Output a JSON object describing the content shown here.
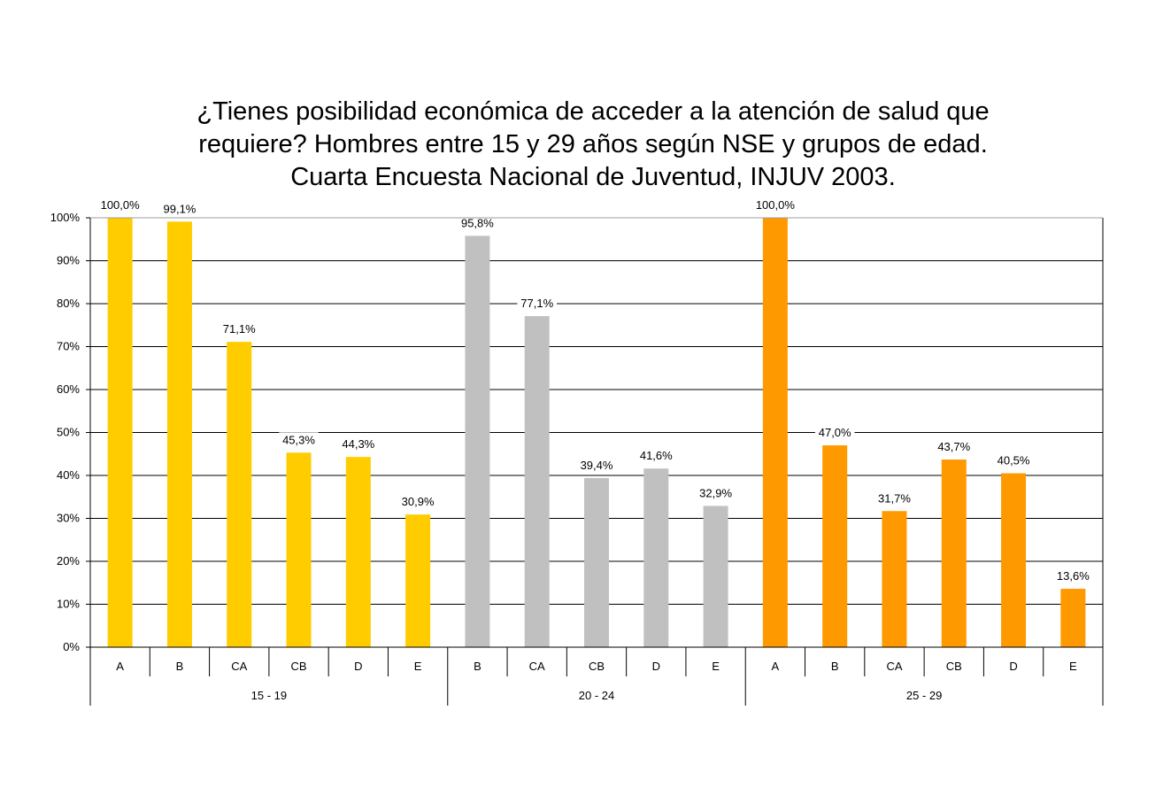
{
  "chart_data": {
    "type": "bar",
    "title_lines": [
      "¿Tienes posibilidad económica de acceder a la atención de salud que",
      "requiere? Hombres entre 15 y 29 años según NSE y grupos de edad.",
      "Cuarta Encuesta Nacional de Juventud, INJUV 2003."
    ],
    "ylim": [
      0,
      100
    ],
    "ytick_step": 10,
    "ytick_suffix": "%",
    "grid": true,
    "legend": "none",
    "groups": [
      {
        "name": "15 - 19",
        "color": "#FFCC00",
        "categories": [
          "A",
          "B",
          "CA",
          "CB",
          "D",
          "E"
        ],
        "values": [
          100.0,
          99.1,
          71.1,
          45.3,
          44.3,
          30.9
        ],
        "labels": [
          "100,0%",
          "99,1%",
          "71,1%",
          "45,3%",
          "44,3%",
          "30,9%"
        ]
      },
      {
        "name": "20 - 24",
        "color": "#C0C0C0",
        "categories": [
          "B",
          "CA",
          "CB",
          "D",
          "E"
        ],
        "values": [
          95.8,
          77.1,
          39.4,
          41.6,
          32.9
        ],
        "labels": [
          "95,8%",
          "77,1%",
          "39,4%",
          "41,6%",
          "32,9%"
        ]
      },
      {
        "name": "25 - 29",
        "color": "#FF9900",
        "categories": [
          "A",
          "B",
          "CA",
          "CB",
          "D",
          "E"
        ],
        "values": [
          100.0,
          47.0,
          31.7,
          43.7,
          40.5,
          13.6
        ],
        "labels": [
          "100,0%",
          "47,0%",
          "31,7%",
          "43,7%",
          "40,5%",
          "13,6%"
        ]
      }
    ]
  }
}
